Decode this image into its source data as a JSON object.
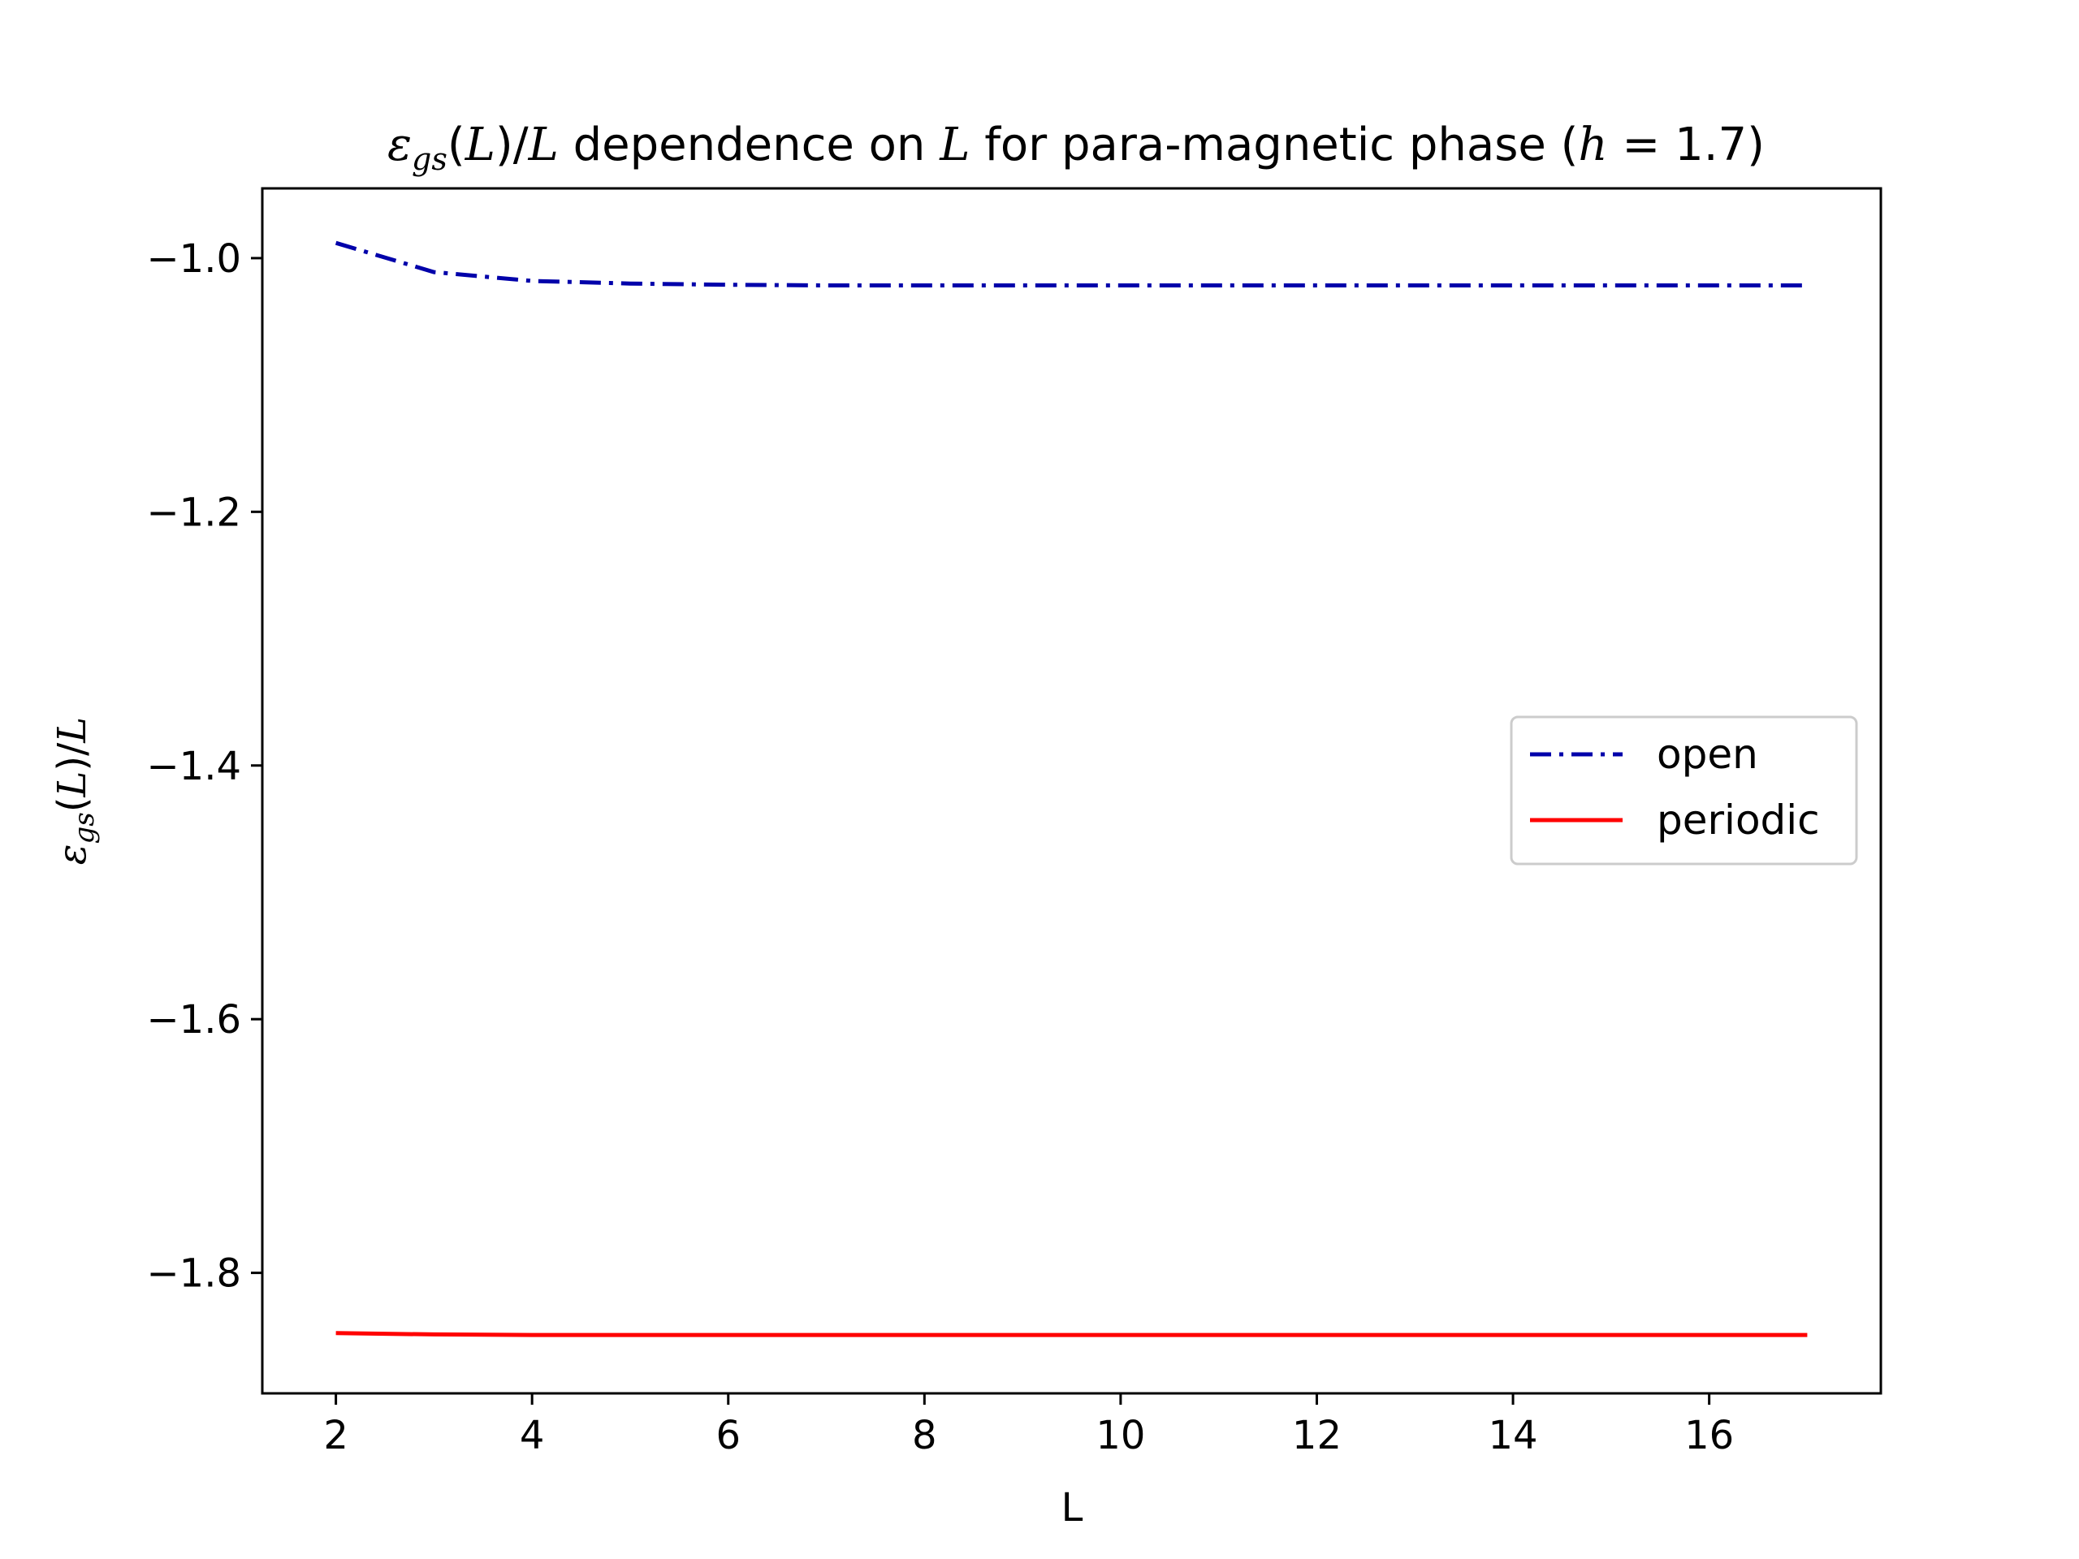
{
  "chart_data": {
    "type": "line",
    "title": {
      "symbol": "ε",
      "subscript": "gs",
      "rest_before_L": "(",
      "L1": "L",
      "mid": ")/",
      "L2": "L",
      "text1": " dependence on ",
      "L3": "L",
      "text2": " for para-magnetic phase (",
      "h": "h",
      "eq": " = 1.7)"
    },
    "xlabel": "L",
    "ylabel": {
      "symbol": "ε",
      "subscript": "gs",
      "open": "(",
      "L1": "L",
      "mid": ")/",
      "L2": "L"
    },
    "xlim": [
      1.25,
      17.75
    ],
    "ylim": [
      -1.895,
      -0.945
    ],
    "xticks": [
      2,
      4,
      6,
      8,
      10,
      12,
      14,
      16
    ],
    "yticks": [
      -1.0,
      -1.2,
      -1.4,
      -1.6,
      -1.8
    ],
    "ytick_labels": [
      "−1.0",
      "−1.2",
      "−1.4",
      "−1.6",
      "−1.8"
    ],
    "xtick_labels": [
      "2",
      "4",
      "6",
      "8",
      "10",
      "12",
      "14",
      "16"
    ],
    "grid": false,
    "legend_position": "center-right",
    "series": [
      {
        "name": "open",
        "color": "#0000aa",
        "style": "dashdot",
        "x": [
          2,
          3,
          4,
          5,
          6,
          7,
          8,
          9,
          10,
          11,
          12,
          13,
          14,
          15,
          16,
          17
        ],
        "y": [
          -0.988,
          -1.011,
          -1.018,
          -1.02,
          -1.021,
          -1.0215,
          -1.0215,
          -1.0215,
          -1.0215,
          -1.0215,
          -1.0215,
          -1.0215,
          -1.0215,
          -1.0215,
          -1.0215,
          -1.0215
        ]
      },
      {
        "name": "periodic",
        "color": "#ff0000",
        "style": "solid",
        "x": [
          2,
          3,
          4,
          5,
          6,
          7,
          8,
          9,
          10,
          11,
          12,
          13,
          14,
          15,
          16,
          17
        ],
        "y": [
          -1.8475,
          -1.8485,
          -1.849,
          -1.849,
          -1.849,
          -1.849,
          -1.849,
          -1.849,
          -1.849,
          -1.849,
          -1.849,
          -1.849,
          -1.849,
          -1.849,
          -1.849,
          -1.849
        ]
      }
    ]
  }
}
